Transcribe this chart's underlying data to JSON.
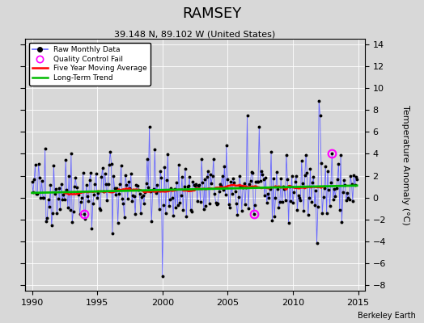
{
  "title": "RAMSEY",
  "subtitle": "39.148 N, 89.102 W (United States)",
  "ylabel": "Temperature Anomaly (°C)",
  "watermark": "Berkeley Earth",
  "xlim": [
    1989.5,
    2015.5
  ],
  "ylim": [
    -8.5,
    14.5
  ],
  "yticks": [
    -8,
    -6,
    -4,
    -2,
    0,
    2,
    4,
    6,
    8,
    10,
    12,
    14
  ],
  "xticks": [
    1990,
    1995,
    2000,
    2005,
    2010,
    2015
  ],
  "bg_color": "#d8d8d8",
  "raw_line_color": "#6666ff",
  "raw_dot_color": "#000000",
  "moving_avg_color": "#ff0000",
  "trend_color": "#00bb00",
  "qc_fail_color": "#ff00ff",
  "seed": 42
}
